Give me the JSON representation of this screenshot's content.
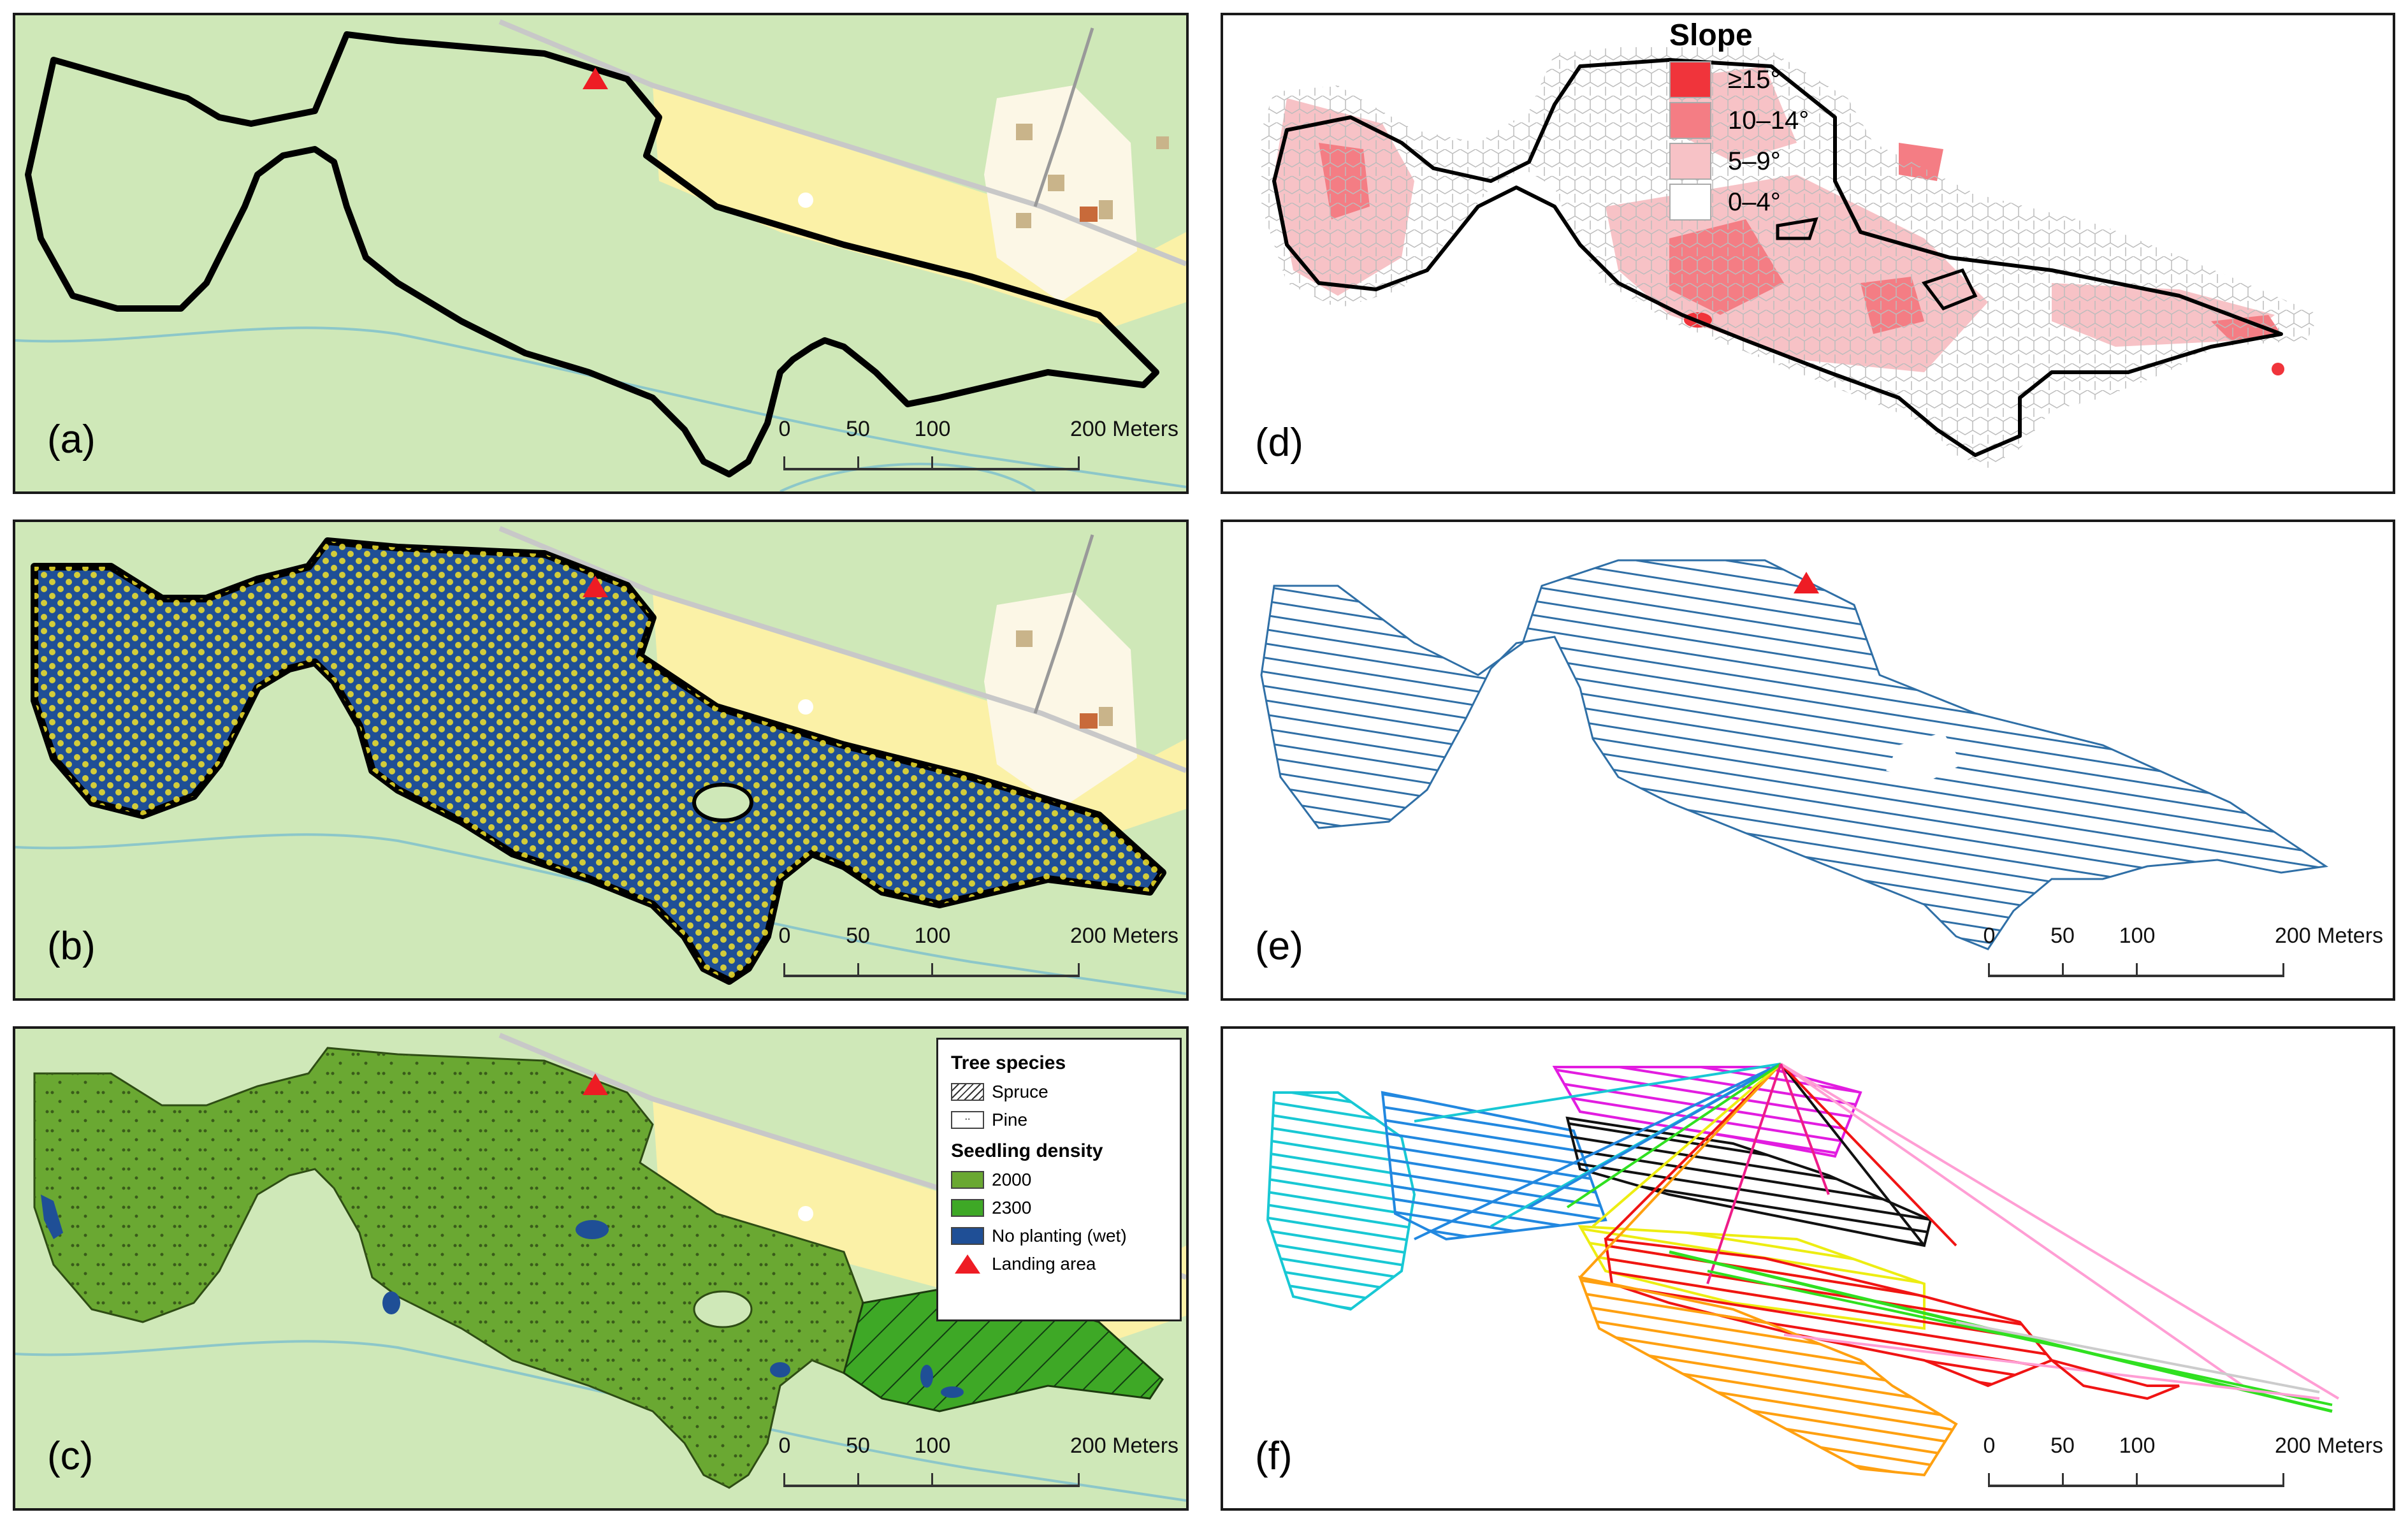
{
  "panels": {
    "a": {
      "label": "(a)"
    },
    "b": {
      "label": "(b)"
    },
    "c": {
      "label": "(c)"
    },
    "d": {
      "label": "(d)"
    },
    "e": {
      "label": "(e)"
    },
    "f": {
      "label": "(f)"
    }
  },
  "scalebar": {
    "t0": "0",
    "t50": "50",
    "t100": "100",
    "t200": "200 Meters"
  },
  "legend_c": {
    "title_species": "Tree species",
    "spruce": "Spruce",
    "pine": "Pine",
    "title_density": "Seedling density",
    "d2000": "2000",
    "d2300": "2300",
    "wet": "No planting (wet)",
    "landing": "Landing area"
  },
  "legend_d": {
    "title": "Slope",
    "items": [
      "≥15°",
      "10–14°",
      "5–9°",
      "0–4°"
    ]
  },
  "colors": {
    "map_bg": "#cfe8b8",
    "field": "#fbf1a7",
    "settlement": "#fcf7e6",
    "water_line": "#8cc7c9",
    "boundary": "#000000",
    "blue_fill": "#1f4f96",
    "seedling_dot": "#f2e22a",
    "green_2000": "#6aa832",
    "green_2300": "#3ea826",
    "wet_blue": "#1f4f96",
    "landing_red": "#ee1c24",
    "slope_15": "#f0343b",
    "slope_10": "#f47d84",
    "slope_5": "#f7c2c6",
    "slope_0": "#ffffff",
    "path_blue": "#2f6fa6",
    "route_colors": [
      "#18c8d4",
      "#2288e0",
      "#e21ce0",
      "#111111",
      "#f01414",
      "#ffa010",
      "#eded12",
      "#30e020",
      "#ff9ed4",
      "#ee1c88"
    ]
  }
}
